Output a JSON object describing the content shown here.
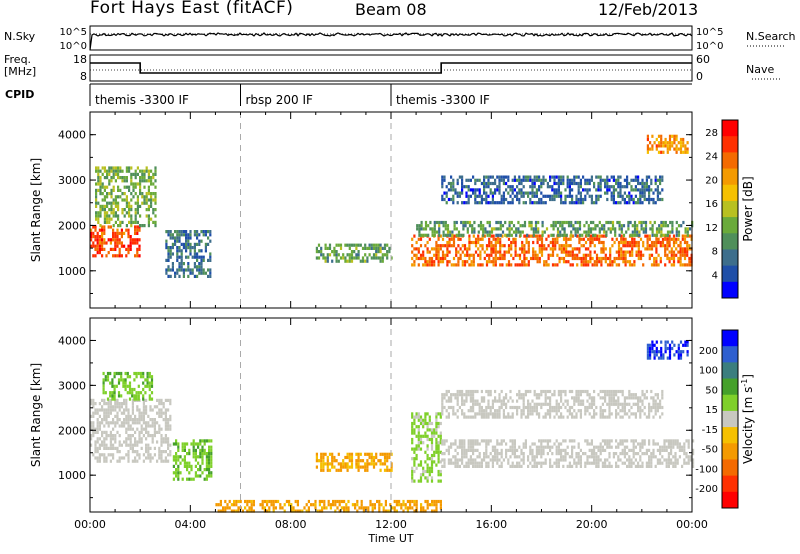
{
  "header": {
    "title": "Fort Hays East (fitACF)",
    "beam": "Beam 08",
    "date": "12/Feb/2013"
  },
  "top_panels": {
    "nsky_label": "N.Sky",
    "nsky_tick_top": "10^5",
    "nsky_tick_bottom": "10^0",
    "nsearch_label": "N.Search",
    "nsearch_tick_top": "10^5",
    "nsearch_tick_bottom": "10^0",
    "freq_label_1": "Freq.",
    "freq_label_2": "[MHz]",
    "freq_tick_top": "18",
    "freq_tick_bottom": "8",
    "nave_label": "Nave",
    "nave_tick_top": "60",
    "nave_tick_bottom": "0",
    "cpid_label": "CPID",
    "cpid_segments": [
      {
        "label": "themis -3300 IF",
        "start_h": 0
      },
      {
        "label": "rbsp 200 IF",
        "start_h": 6
      },
      {
        "label": "themis -3300 IF",
        "start_h": 12
      }
    ]
  },
  "colors": {
    "power": [
      "#0000ff",
      "#1f4fa8",
      "#3d6e8c",
      "#4f8f5a",
      "#6aaa3a",
      "#b8c020",
      "#f5c000",
      "#f49a00",
      "#f46a00",
      "#ff3000",
      "#ff0000"
    ],
    "velocity": [
      "#0000ff",
      "#2f5fd0",
      "#3b7e7e",
      "#45a02a",
      "#7fd02a",
      "#c8c8c0",
      "#f5c000",
      "#f49a00",
      "#f46a00",
      "#ff3000",
      "#ff0000"
    ],
    "ground_scatter": "#c8c8c0"
  },
  "chart_data": [
    {
      "type": "heatmap",
      "title": "Power",
      "xlabel": "",
      "ylabel": "Slant Range [km]",
      "xlim": [
        0,
        24
      ],
      "ylim": [
        180,
        4500
      ],
      "y_ticks": [
        "1000",
        "2000",
        "3000",
        "4000"
      ],
      "colorbar_label": "Power [dB]",
      "colorbar_ticks": [
        "4",
        "8",
        "12",
        "16",
        "20",
        "24",
        "28"
      ],
      "colorbar_range": [
        0,
        30
      ],
      "regions": [
        {
          "t0": 0.0,
          "t1": 2.0,
          "r0": 1300,
          "r1": 2000,
          "level": 26
        },
        {
          "t0": 0.2,
          "t1": 2.6,
          "r0": 2000,
          "r1": 3300,
          "level": 12
        },
        {
          "t0": 3.0,
          "t1": 4.8,
          "r0": 900,
          "r1": 1900,
          "level": 6
        },
        {
          "t0": 9.0,
          "t1": 12.0,
          "r0": 1200,
          "r1": 1600,
          "level": 10
        },
        {
          "t0": 12.8,
          "t1": 24.0,
          "r0": 1100,
          "r1": 1800,
          "level": 24
        },
        {
          "t0": 13.0,
          "t1": 24.0,
          "r0": 1800,
          "r1": 2100,
          "level": 10
        },
        {
          "t0": 14.0,
          "t1": 22.8,
          "r0": 2500,
          "r1": 3100,
          "level": 5
        },
        {
          "t0": 22.2,
          "t1": 23.8,
          "r0": 3600,
          "r1": 4000,
          "level": 22
        }
      ]
    },
    {
      "type": "heatmap",
      "title": "Velocity",
      "xlabel": "Time UT",
      "ylabel": "Slant Range [km]",
      "xlim": [
        0,
        24
      ],
      "ylim": [
        180,
        4500
      ],
      "x_ticks": [
        "00:00",
        "04:00",
        "08:00",
        "12:00",
        "16:00",
        "20:00",
        "00:00"
      ],
      "y_ticks": [
        "1000",
        "2000",
        "3000",
        "4000"
      ],
      "colorbar_label": "Velocity [m s^-1]",
      "colorbar_ticks": [
        "200",
        "100",
        "50",
        "15",
        "-15",
        "-50",
        "-100",
        "-200"
      ],
      "colorbar_range": [
        -250,
        250
      ],
      "regions": [
        {
          "t0": 0.0,
          "t1": 3.2,
          "r0": 1300,
          "r1": 2700,
          "level": 0,
          "ground": true
        },
        {
          "t0": 0.5,
          "t1": 2.5,
          "r0": 2700,
          "r1": 3300,
          "level": 60
        },
        {
          "t0": 3.3,
          "t1": 4.8,
          "r0": 900,
          "r1": 1800,
          "level": 60
        },
        {
          "t0": 9.0,
          "t1": 12.0,
          "r0": 1100,
          "r1": 1500,
          "level": -80
        },
        {
          "t0": 12.8,
          "t1": 14.0,
          "r0": 900,
          "r1": 2400,
          "level": 40
        },
        {
          "t0": 14.0,
          "t1": 24.0,
          "r0": 1200,
          "r1": 1800,
          "level": 0,
          "ground": true
        },
        {
          "t0": 14.0,
          "t1": 22.8,
          "r0": 2300,
          "r1": 2900,
          "level": 0,
          "ground": true
        },
        {
          "t0": 5.0,
          "t1": 14.0,
          "r0": 180,
          "r1": 450,
          "level": -90
        },
        {
          "t0": 22.2,
          "t1": 23.8,
          "r0": 3600,
          "r1": 4000,
          "level": 220
        }
      ]
    }
  ]
}
